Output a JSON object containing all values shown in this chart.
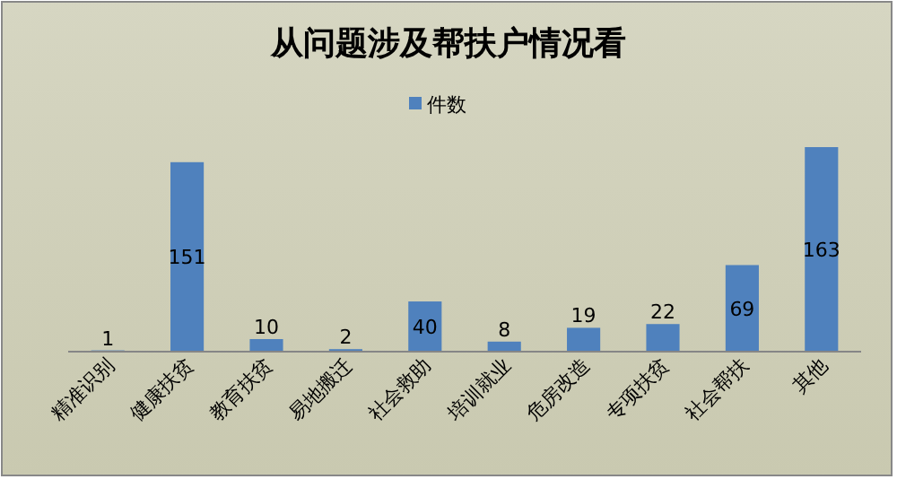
{
  "chart_data": {
    "type": "bar",
    "title": "从问题涉及帮扶户情况看",
    "categories": [
      "精准识别",
      "健康扶贫",
      "教育扶贫",
      "易地搬迁",
      "社会救助",
      "培训就业",
      "危房改造",
      "专项扶贫",
      "社会帮扶",
      "其他"
    ],
    "series": [
      {
        "name": "件数",
        "color": "#4f81bd",
        "values": [
          1,
          151,
          10,
          2,
          40,
          8,
          19,
          22,
          69,
          163
        ]
      }
    ],
    "data_labels": true,
    "legend": "top"
  }
}
